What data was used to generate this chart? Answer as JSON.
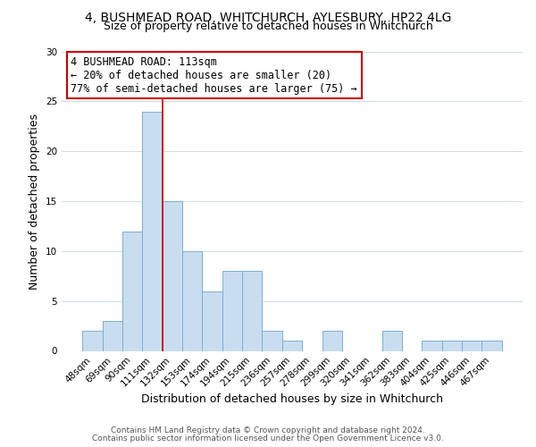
{
  "title": "4, BUSHMEAD ROAD, WHITCHURCH, AYLESBURY, HP22 4LG",
  "subtitle": "Size of property relative to detached houses in Whitchurch",
  "xlabel": "Distribution of detached houses by size in Whitchurch",
  "ylabel": "Number of detached properties",
  "bar_labels": [
    "48sqm",
    "69sqm",
    "90sqm",
    "111sqm",
    "132sqm",
    "153sqm",
    "174sqm",
    "194sqm",
    "215sqm",
    "236sqm",
    "257sqm",
    "278sqm",
    "299sqm",
    "320sqm",
    "341sqm",
    "362sqm",
    "383sqm",
    "404sqm",
    "425sqm",
    "446sqm",
    "467sqm"
  ],
  "bar_values": [
    2,
    3,
    12,
    24,
    15,
    10,
    6,
    8,
    8,
    2,
    1,
    0,
    2,
    0,
    0,
    2,
    0,
    1,
    1,
    1,
    1
  ],
  "bar_color": "#c9ddf0",
  "bar_edge_color": "#7bafd4",
  "annotation_box_title": "4 BUSHMEAD ROAD: 113sqm",
  "annotation_line1": "← 20% of detached houses are smaller (20)",
  "annotation_line2": "77% of semi-detached houses are larger (75) →",
  "annotation_box_color": "#ffffff",
  "annotation_box_edge_color": "#cc0000",
  "ylim": [
    0,
    30
  ],
  "yticks": [
    0,
    5,
    10,
    15,
    20,
    25,
    30
  ],
  "footer_line1": "Contains HM Land Registry data © Crown copyright and database right 2024.",
  "footer_line2": "Contains public sector information licensed under the Open Government Licence v3.0.",
  "background_color": "#ffffff",
  "grid_color": "#d0dce8",
  "title_fontsize": 10,
  "subtitle_fontsize": 9,
  "axis_label_fontsize": 9,
  "tick_fontsize": 7.5,
  "annotation_fontsize": 8.5,
  "footer_fontsize": 6.5,
  "property_line_x": 3.5,
  "property_line_color": "#cc0000"
}
